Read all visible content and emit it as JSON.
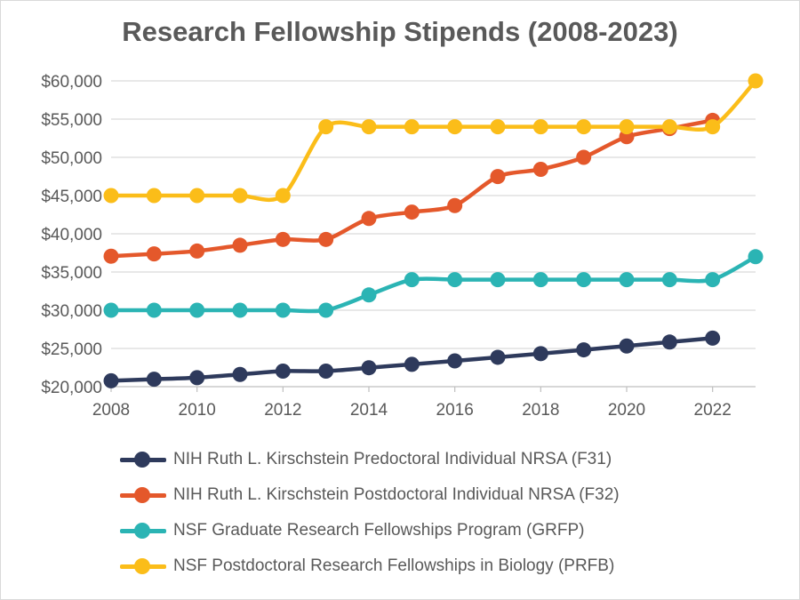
{
  "chart_data": {
    "type": "line",
    "title": "Research Fellowship Stipends (2008-2023)",
    "xlabel": "",
    "ylabel": "",
    "xlim": [
      2008,
      2023
    ],
    "ylim": [
      20000,
      60000
    ],
    "x_ticks": [
      2008,
      2010,
      2012,
      2014,
      2016,
      2018,
      2020,
      2022
    ],
    "x_tick_labels": [
      "2008",
      "2010",
      "2012",
      "2014",
      "2016",
      "2018",
      "2020",
      "2022"
    ],
    "y_ticks": [
      20000,
      25000,
      30000,
      35000,
      40000,
      45000,
      50000,
      55000,
      60000
    ],
    "y_tick_labels": [
      "$20,000",
      "$25,000",
      "$30,000",
      "$35,000",
      "$40,000",
      "$45,000",
      "$50,000",
      "$55,000",
      "$60,000"
    ],
    "grid": "horizontal",
    "legend_position": "bottom",
    "series": [
      {
        "name": "NIH Ruth L. Kirschstein Predoctoral Individual NRSA (F31)",
        "color": "#2e3a5c",
        "x": [
          2008,
          2009,
          2010,
          2011,
          2012,
          2013,
          2014,
          2015,
          2016,
          2017,
          2018,
          2019,
          2020,
          2021,
          2022
        ],
        "values": [
          20772,
          20976,
          21180,
          21600,
          22032,
          22032,
          22476,
          22920,
          23376,
          23844,
          24324,
          24816,
          25320,
          25836,
          26352
        ]
      },
      {
        "name": "NIH Ruth L. Kirschstein Postdoctoral Individual NRSA (F32)",
        "color": "#e4582b",
        "x": [
          2008,
          2009,
          2010,
          2011,
          2012,
          2013,
          2014,
          2015,
          2016,
          2017,
          2018,
          2019,
          2020,
          2021,
          2022
        ],
        "values": [
          37068,
          37368,
          37740,
          38496,
          39264,
          39264,
          42000,
          42840,
          43692,
          47484,
          48432,
          50004,
          52704,
          53760,
          54835
        ]
      },
      {
        "name": "NSF Graduate Research Fellowships Program (GRFP)",
        "color": "#2bb4b4",
        "x": [
          2008,
          2009,
          2010,
          2011,
          2012,
          2013,
          2014,
          2015,
          2016,
          2017,
          2018,
          2019,
          2020,
          2021,
          2022,
          2023
        ],
        "values": [
          30000,
          30000,
          30000,
          30000,
          30000,
          30000,
          32000,
          34000,
          34000,
          34000,
          34000,
          34000,
          34000,
          34000,
          34000,
          37000
        ]
      },
      {
        "name": "NSF Postdoctoral Research Fellowships in Biology (PRFB)",
        "color": "#fbbd19",
        "x": [
          2008,
          2009,
          2010,
          2011,
          2012,
          2013,
          2014,
          2015,
          2016,
          2017,
          2018,
          2019,
          2020,
          2021,
          2022,
          2023
        ],
        "values": [
          45000,
          45000,
          45000,
          45000,
          45000,
          54000,
          54000,
          54000,
          54000,
          54000,
          54000,
          54000,
          54000,
          54000,
          54000,
          60000
        ]
      }
    ]
  }
}
